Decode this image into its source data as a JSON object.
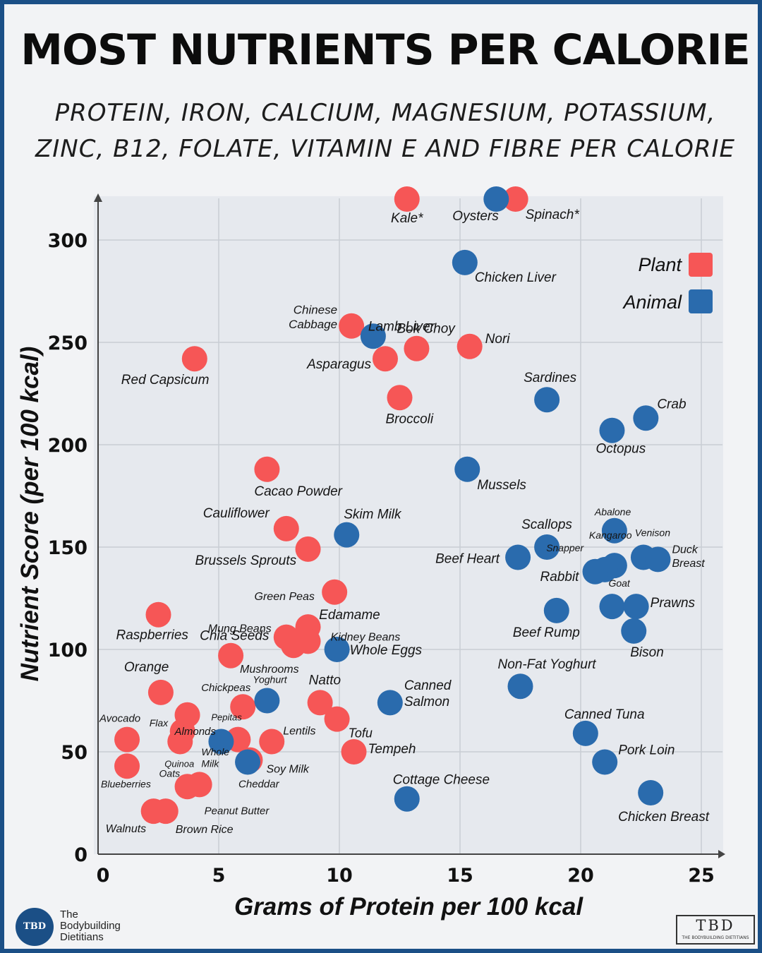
{
  "header": {
    "title": "MOST NUTRIENTS PER CALORIE",
    "subtitle_line1": "PROTEIN, IRON, CALCIUM, MAGNESIUM, POTASSIUM,",
    "subtitle_line2": "ZINC, B12, FOLATE, VITAMIN E AND FIBRE PER CALORIE"
  },
  "branding": {
    "left_logo": "TBD",
    "left_name_line1": "The",
    "left_name_line2": "Bodybuilding",
    "left_name_line3": "Dietitians",
    "right_logo": "TBD",
    "right_small": "THE BODYBUILDING DIETITIANS"
  },
  "colors": {
    "plant": "#f65656",
    "animal": "#2a6bad"
  },
  "chart_data": {
    "type": "scatter",
    "xlabel": "Grams of Protein per 100 kcal",
    "ylabel": "Nutrient Score (per 100 kcal)",
    "xlim": [
      0,
      25.6
    ],
    "ylim": [
      0,
      320
    ],
    "xticks": [
      0,
      5,
      10,
      15,
      20,
      25
    ],
    "yticks": [
      0,
      50,
      100,
      150,
      200,
      250,
      300
    ],
    "grid": true,
    "legend": {
      "placement": "top-right",
      "entries": [
        "Plant",
        "Animal"
      ]
    },
    "series": [
      {
        "name": "Plant",
        "points": [
          {
            "label": "Kale*",
            "x": 12.8,
            "y": 320
          },
          {
            "label": "Spinach*",
            "x": 17.3,
            "y": 320
          },
          {
            "label": "Chinese Cabbage",
            "x": 10.5,
            "y": 258
          },
          {
            "label": "Asparagus",
            "x": 11.9,
            "y": 242
          },
          {
            "label": "Bok Choy",
            "x": 13.2,
            "y": 247
          },
          {
            "label": "Nori",
            "x": 15.4,
            "y": 248
          },
          {
            "label": "Broccoli",
            "x": 12.5,
            "y": 223
          },
          {
            "label": "Red Capsicum",
            "x": 4.0,
            "y": 242
          },
          {
            "label": "Cacao Powder",
            "x": 7.0,
            "y": 188
          },
          {
            "label": "Cauliflower",
            "x": 7.8,
            "y": 159
          },
          {
            "label": "Brussels Sprouts",
            "x": 8.7,
            "y": 149
          },
          {
            "label": "Edamame",
            "x": 9.8,
            "y": 128
          },
          {
            "label": "Green Peas",
            "x": 8.7,
            "y": 111
          },
          {
            "label": "Mung Beans",
            "x": 7.8,
            "y": 106
          },
          {
            "label": "Kidney Beans",
            "x": 8.7,
            "y": 104
          },
          {
            "label": "Mushrooms",
            "x": 8.1,
            "y": 102
          },
          {
            "label": "Raspberries",
            "x": 2.5,
            "y": 117
          },
          {
            "label": "Chia Seeds",
            "x": 5.5,
            "y": 97
          },
          {
            "label": "Orange",
            "x": 2.6,
            "y": 79
          },
          {
            "label": "Almonds",
            "x": 3.7,
            "y": 68
          },
          {
            "label": "Chickpeas",
            "x": 6.0,
            "y": 72
          },
          {
            "label": "Flax",
            "x": 3.5,
            "y": 60
          },
          {
            "label": "Avocado",
            "x": 1.2,
            "y": 56
          },
          {
            "label": "Quinoa",
            "x": 3.4,
            "y": 55
          },
          {
            "label": "Pepitas",
            "x": 5.8,
            "y": 56
          },
          {
            "label": "Lentils",
            "x": 7.2,
            "y": 55
          },
          {
            "label": "Natto",
            "x": 9.2,
            "y": 74
          },
          {
            "label": "Tofu",
            "x": 9.9,
            "y": 66
          },
          {
            "label": "Tempeh",
            "x": 10.6,
            "y": 50
          },
          {
            "label": "Soy Milk",
            "x": 6.3,
            "y": 46
          },
          {
            "label": "Blueberries",
            "x": 1.2,
            "y": 43
          },
          {
            "label": "Oats",
            "x": 3.7,
            "y": 33
          },
          {
            "label": "Peanut Butter",
            "x": 4.2,
            "y": 34
          },
          {
            "label": "Walnuts",
            "x": 2.3,
            "y": 21
          },
          {
            "label": "Brown Rice",
            "x": 2.8,
            "y": 21
          }
        ]
      },
      {
        "name": "Animal",
        "points": [
          {
            "label": "Oysters",
            "x": 16.5,
            "y": 320
          },
          {
            "label": "Chicken Liver",
            "x": 15.2,
            "y": 289
          },
          {
            "label": "Lamb Liver",
            "x": 11.4,
            "y": 253
          },
          {
            "label": "Sardines",
            "x": 18.6,
            "y": 222
          },
          {
            "label": "Crab",
            "x": 22.7,
            "y": 213
          },
          {
            "label": "Octopus",
            "x": 21.3,
            "y": 207
          },
          {
            "label": "Mussels",
            "x": 15.3,
            "y": 188
          },
          {
            "label": "Skim Milk",
            "x": 10.3,
            "y": 156
          },
          {
            "label": "Abalone",
            "x": 21.4,
            "y": 158
          },
          {
            "label": "Scallops",
            "x": 18.6,
            "y": 150
          },
          {
            "label": "Beef Heart",
            "x": 17.4,
            "y": 145
          },
          {
            "label": "Venison",
            "x": 22.6,
            "y": 145
          },
          {
            "label": "Duck Breast",
            "x": 23.2,
            "y": 144
          },
          {
            "label": "Kangaroo",
            "x": 21.4,
            "y": 141
          },
          {
            "label": "Snapper",
            "x": 21.0,
            "y": 139
          },
          {
            "label": "Rabbit",
            "x": 20.6,
            "y": 138
          },
          {
            "label": "Goat",
            "x": 21.3,
            "y": 121
          },
          {
            "label": "Prawns",
            "x": 22.3,
            "y": 121
          },
          {
            "label": "Beef Rump",
            "x": 19.0,
            "y": 119
          },
          {
            "label": "Bison",
            "x": 22.2,
            "y": 109
          },
          {
            "label": "Whole Eggs",
            "x": 9.9,
            "y": 100
          },
          {
            "label": "Non-Fat Yoghurt",
            "x": 17.5,
            "y": 82
          },
          {
            "label": "Yoghurt",
            "x": 7.0,
            "y": 75
          },
          {
            "label": "Canned Salmon",
            "x": 12.1,
            "y": 74
          },
          {
            "label": "Canned Tuna",
            "x": 20.2,
            "y": 59
          },
          {
            "label": "Whole Milk",
            "x": 5.1,
            "y": 55
          },
          {
            "label": "Cheddar",
            "x": 6.2,
            "y": 45
          },
          {
            "label": "Pork Loin",
            "x": 21.0,
            "y": 45
          },
          {
            "label": "Cottage Cheese",
            "x": 12.8,
            "y": 27
          },
          {
            "label": "Chicken Breast",
            "x": 22.9,
            "y": 30
          }
        ]
      }
    ]
  }
}
